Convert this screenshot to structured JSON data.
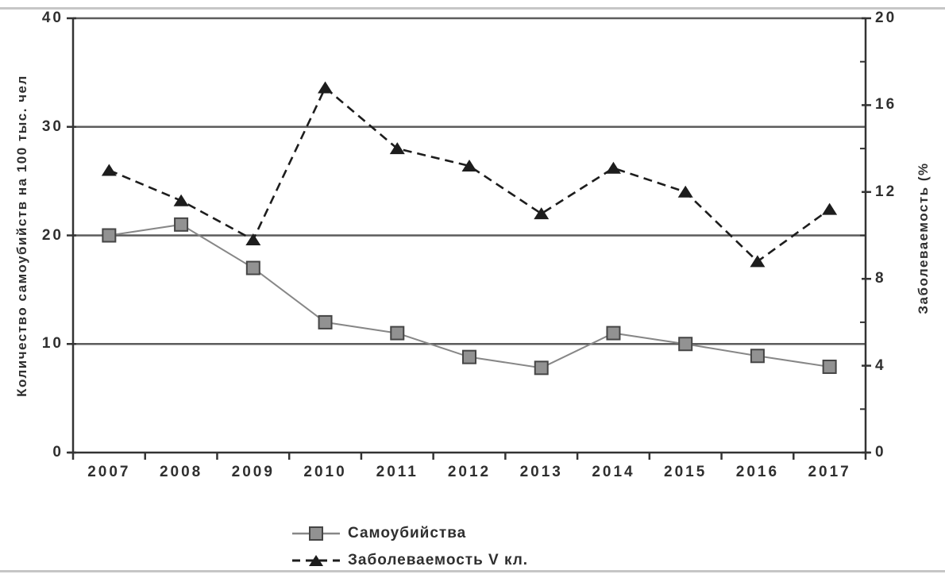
{
  "chart_data": {
    "type": "line",
    "title": "",
    "categories": [
      "2007",
      "2008",
      "2009",
      "2010",
      "2011",
      "2012",
      "2013",
      "2014",
      "2015",
      "2016",
      "2017"
    ],
    "series": [
      {
        "name": "Самоубийства",
        "axis": "left",
        "marker": "square",
        "line_style": "solid",
        "line_color": "#878787",
        "marker_fill": "#929292",
        "marker_stroke": "#454545",
        "values": [
          20,
          21,
          17,
          12,
          11,
          8.8,
          7.8,
          11,
          10,
          8.9,
          7.9
        ]
      },
      {
        "name": "Заболеваемость V кл.",
        "axis": "right",
        "marker": "triangle",
        "line_style": "dashed",
        "line_color": "#1d1d1d",
        "marker_fill": "#1d1d1d",
        "marker_stroke": "#1d1d1d",
        "values": [
          13.0,
          11.6,
          9.8,
          16.8,
          14.0,
          13.2,
          11.0,
          13.1,
          12.0,
          8.8,
          11.2
        ]
      }
    ],
    "left_axis": {
      "label": "Количество самоубийств на 100 тыс. чел",
      "min": 0,
      "max": 40,
      "tick_labels": [
        "40",
        "30",
        "20",
        "10",
        "0"
      ],
      "tick_values": [
        40,
        30,
        20,
        10,
        0
      ],
      "gridline_values": [
        10,
        20,
        30,
        40
      ]
    },
    "right_axis": {
      "label": "Заболеваемость (%",
      "min": 0,
      "max": 20,
      "tick_labels": [
        "20",
        "16",
        "12",
        "8",
        "4",
        "0"
      ],
      "tick_values": [
        20,
        16,
        12,
        8,
        4,
        0
      ],
      "minor_tick_values": [
        2,
        6,
        10,
        14,
        18
      ]
    },
    "x_axis": {
      "tick_labels": [
        "2007",
        "2008",
        "2009",
        "2010",
        "2011",
        "2012",
        "2013",
        "2014",
        "2015",
        "2016",
        "2017"
      ]
    },
    "legend": {
      "position": "bottom",
      "entries": [
        "Самоубийства",
        "Заболеваемость V кл."
      ]
    },
    "colors": {
      "grid": "#5c5c5c",
      "axis": "#333333",
      "text": "#2f2f2f",
      "scan_border": "#c6c6c6"
    }
  }
}
